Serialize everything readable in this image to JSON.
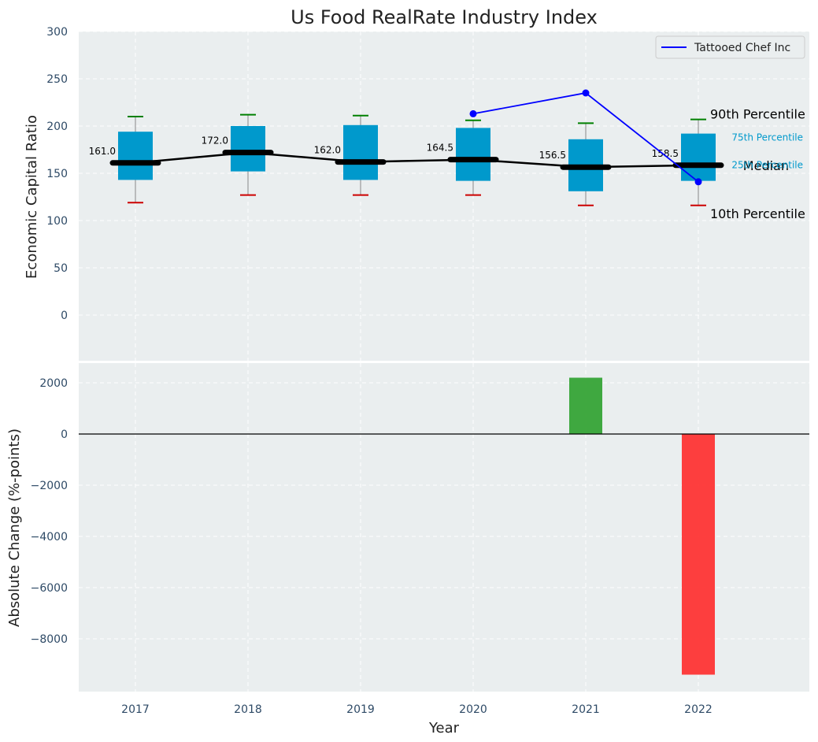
{
  "chart_data": [
    {
      "type": "box",
      "title": "Us Food RealRate Industry Index",
      "ylabel": "Economic Capital Ratio",
      "xlabel": "",
      "ylim": [
        -35,
        300
      ],
      "yticks": [
        0,
        50,
        100,
        150,
        200,
        250,
        300
      ],
      "grid": true,
      "categories": [
        "2017",
        "2018",
        "2019",
        "2020",
        "2021",
        "2022"
      ],
      "boxes": [
        {
          "year": "2017",
          "p10": 119,
          "p25": 143,
          "median": 161.0,
          "p75": 194,
          "p90": 210,
          "median_label": "161.0"
        },
        {
          "year": "2018",
          "p10": 127,
          "p25": 152,
          "median": 172.0,
          "p75": 200,
          "p90": 212,
          "median_label": "172.0"
        },
        {
          "year": "2019",
          "p10": 127,
          "p25": 143,
          "median": 162.0,
          "p75": 201,
          "p90": 211,
          "median_label": "162.0"
        },
        {
          "year": "2020",
          "p10": 127,
          "p25": 142,
          "median": 164.5,
          "p75": 198,
          "p90": 206,
          "median_label": "164.5"
        },
        {
          "year": "2021",
          "p10": 116,
          "p25": 131,
          "median": 156.5,
          "p75": 186,
          "p90": 203,
          "median_label": "156.5"
        },
        {
          "year": "2022",
          "p10": 116,
          "p25": 142,
          "median": 158.5,
          "p75": 192,
          "p90": 207,
          "median_label": "158.5"
        }
      ],
      "series": [
        {
          "name": "Tattooed Chef Inc",
          "x": [
            "2020",
            "2021",
            "2022"
          ],
          "values": [
            213,
            235,
            141
          ]
        }
      ],
      "legend": {
        "placement": "top-right",
        "entries": [
          "Tattooed Chef Inc"
        ]
      },
      "annotations": {
        "p90": "90th Percentile",
        "p75": "75th Percentile",
        "median": "Median",
        "p25": "25th Percentile",
        "p10": "10th Percentile"
      },
      "colors": {
        "box": "#0099cc",
        "median": "#000000",
        "whisker_high": "#008000",
        "whisker_low": "#cc0000",
        "company": "#0000ff",
        "background": "#eaeeef"
      }
    },
    {
      "type": "bar",
      "title": "",
      "ylabel": "Absolute Change (%-points)",
      "xlabel": "Year",
      "ylim": [
        -10000,
        2800
      ],
      "yticks": [
        2000,
        0,
        -2000,
        -4000,
        -6000,
        -8000
      ],
      "ytick_labels": [
        "2000",
        "0",
        "−2000",
        "−4000",
        "−6000",
        "−8000"
      ],
      "grid": true,
      "categories": [
        "2017",
        "2018",
        "2019",
        "2020",
        "2021",
        "2022"
      ],
      "values": [
        0,
        0,
        0,
        0,
        2200,
        -9400
      ],
      "colors": {
        "positive": "#2ca02c",
        "negative": "#ff2a2a",
        "zero_line": "#000000",
        "background": "#eaeeef"
      }
    }
  ]
}
